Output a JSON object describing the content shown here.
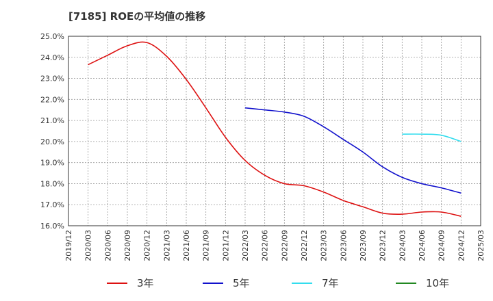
{
  "chart_data": {
    "type": "line",
    "title": "[7185]  ROEの平均値の推移",
    "xlabel": "",
    "ylabel": "",
    "ylim": [
      16.0,
      25.0
    ],
    "y_ticks": [
      "16.0%",
      "17.0%",
      "18.0%",
      "19.0%",
      "20.0%",
      "21.0%",
      "22.0%",
      "23.0%",
      "24.0%",
      "25.0%"
    ],
    "y_tick_values": [
      16,
      17,
      18,
      19,
      20,
      21,
      22,
      23,
      24,
      25
    ],
    "categories": [
      "2019/12",
      "2020/03",
      "2020/06",
      "2020/09",
      "2020/12",
      "2021/03",
      "2021/06",
      "2021/09",
      "2021/12",
      "2022/03",
      "2022/06",
      "2022/09",
      "2022/12",
      "2023/03",
      "2023/06",
      "2023/09",
      "2023/12",
      "2024/03",
      "2024/06",
      "2024/09",
      "2024/12",
      "2025/03"
    ],
    "grid": true,
    "legend_position": "bottom",
    "series": [
      {
        "name": "3年",
        "color": "#dd1111",
        "values": [
          null,
          23.65,
          24.1,
          24.55,
          24.7,
          24.05,
          22.95,
          21.6,
          20.2,
          19.1,
          18.4,
          18.0,
          17.9,
          17.6,
          17.2,
          16.9,
          16.6,
          16.55,
          16.65,
          16.65,
          16.45,
          null
        ]
      },
      {
        "name": "5年",
        "color": "#1111cc",
        "values": [
          null,
          null,
          null,
          null,
          null,
          null,
          null,
          null,
          null,
          21.6,
          21.5,
          21.4,
          21.2,
          20.7,
          20.1,
          19.5,
          18.8,
          18.3,
          18.0,
          17.8,
          17.55,
          null
        ]
      },
      {
        "name": "7年",
        "color": "#33ddee",
        "values": [
          null,
          null,
          null,
          null,
          null,
          null,
          null,
          null,
          null,
          null,
          null,
          null,
          null,
          null,
          null,
          null,
          null,
          20.35,
          20.35,
          20.3,
          20.0,
          null
        ]
      },
      {
        "name": "10年",
        "color": "#228822",
        "values": [
          null,
          null,
          null,
          null,
          null,
          null,
          null,
          null,
          null,
          null,
          null,
          null,
          null,
          null,
          null,
          null,
          null,
          null,
          null,
          null,
          null,
          null
        ]
      }
    ]
  }
}
